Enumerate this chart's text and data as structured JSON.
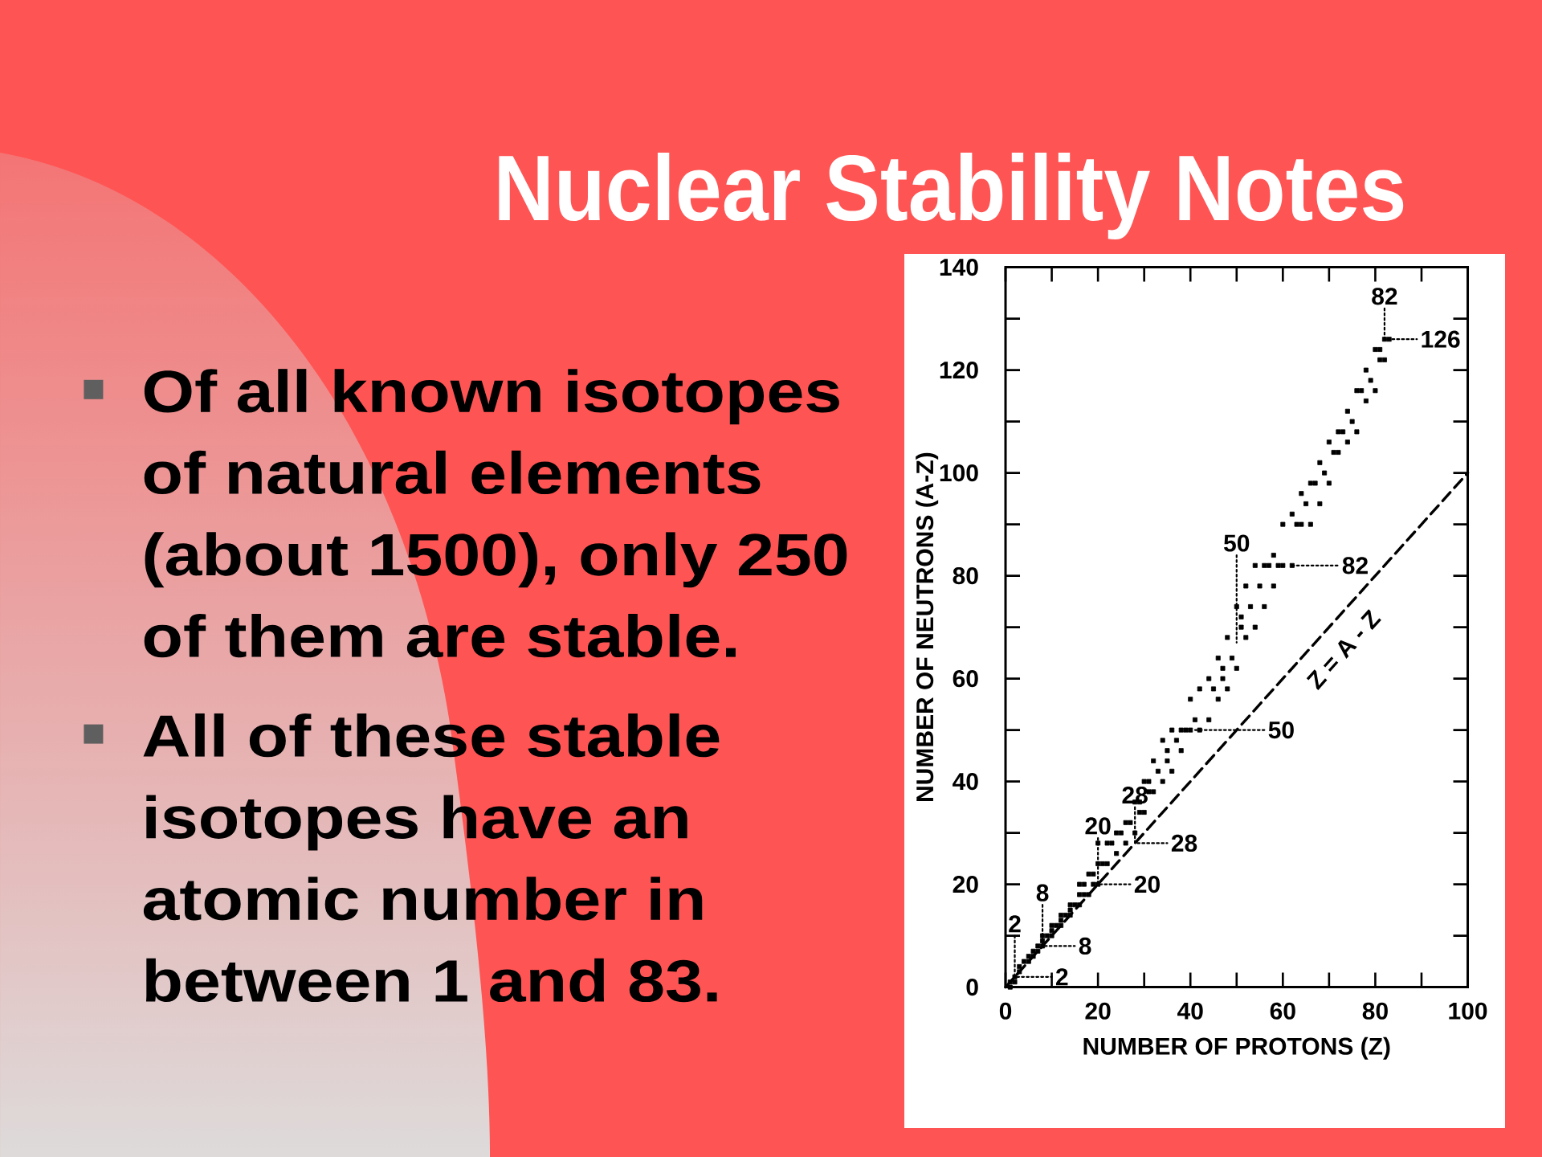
{
  "chart_data": {
    "type": "scatter",
    "title": "Nuclear Stability Notes",
    "xlabel": "NUMBER OF PROTONS (Z)",
    "ylabel": "NUMBER OF NEUTRONS (A-Z)",
    "xlim": [
      0,
      100
    ],
    "ylim": [
      0,
      140
    ],
    "xticks": [
      0,
      {
        "value": 10,
        "label": null
      },
      20,
      {
        "value": 30,
        "label": null
      },
      40,
      {
        "value": 50,
        "label": null
      },
      60,
      {
        "value": 70,
        "label": null
      },
      80,
      {
        "value": 90,
        "label": null
      },
      100
    ],
    "yticks": [
      0,
      {
        "value": 10,
        "label": null
      },
      20,
      {
        "value": 30,
        "label": null
      },
      40,
      {
        "value": 50,
        "label": null
      },
      60,
      {
        "value": 70,
        "label": null
      },
      80,
      {
        "value": 90,
        "label": null
      },
      100,
      {
        "value": 110,
        "label": null
      },
      120,
      {
        "value": 130,
        "label": null
      },
      140
    ],
    "series": [
      {
        "color": "#000000",
        "marker": "square",
        "x": [
          1,
          1,
          2,
          2,
          3,
          3,
          4,
          5,
          5,
          6,
          6,
          7,
          7,
          8,
          8,
          8,
          9,
          10,
          10,
          10,
          11,
          12,
          12,
          12,
          13,
          14,
          14,
          14,
          15,
          16,
          16,
          16,
          17,
          17,
          18,
          18,
          19,
          19,
          20,
          20,
          20,
          21,
          22,
          22,
          23,
          24,
          24,
          25,
          26,
          26,
          27,
          28,
          28,
          29,
          29,
          30,
          30,
          31,
          31,
          32,
          32,
          33,
          34,
          34,
          35,
          35,
          36,
          36,
          37,
          38,
          38,
          39,
          40,
          40,
          41,
          42,
          42,
          44,
          44,
          45,
          46,
          46,
          47,
          47,
          48,
          48,
          49,
          50,
          50,
          51,
          51,
          52,
          52,
          53,
          54,
          54,
          55,
          56,
          56,
          57,
          58,
          58,
          59,
          60,
          60,
          62,
          62,
          63,
          64,
          64,
          65,
          66,
          66,
          67,
          68,
          68,
          69,
          70,
          70,
          71,
          72,
          72,
          73,
          74,
          74,
          75,
          76,
          76,
          77,
          78,
          78,
          79,
          80,
          80,
          81,
          81,
          82,
          82,
          83
        ],
        "values": [
          0,
          1,
          1,
          2,
          3,
          4,
          5,
          5,
          6,
          6,
          7,
          7,
          8,
          8,
          9,
          10,
          10,
          10,
          11,
          12,
          12,
          12,
          13,
          14,
          14,
          14,
          15,
          16,
          16,
          16,
          18,
          20,
          18,
          20,
          18,
          22,
          20,
          22,
          20,
          24,
          28,
          24,
          24,
          28,
          28,
          26,
          30,
          30,
          28,
          32,
          32,
          30,
          36,
          34,
          36,
          34,
          40,
          38,
          40,
          38,
          44,
          42,
          40,
          48,
          44,
          46,
          42,
          50,
          48,
          46,
          50,
          50,
          50,
          56,
          52,
          50,
          58,
          52,
          60,
          58,
          56,
          64,
          60,
          62,
          58,
          68,
          64,
          62,
          74,
          70,
          72,
          68,
          78,
          74,
          70,
          82,
          78,
          74,
          82,
          82,
          78,
          84,
          82,
          82,
          90,
          82,
          92,
          90,
          90,
          96,
          94,
          90,
          98,
          98,
          94,
          102,
          100,
          98,
          106,
          104,
          104,
          108,
          108,
          106,
          112,
          110,
          108,
          116,
          116,
          114,
          120,
          118,
          116,
          124,
          122,
          124,
          122,
          126,
          126
        ]
      },
      {
        "type": "line",
        "name": "Z = A - Z",
        "color": "#000000",
        "line_style": "dashed",
        "x": [
          0,
          100
        ],
        "values": [
          0,
          100
        ]
      },
      {
        "type": "line",
        "color": "#000000",
        "line_style": "dotted",
        "x": [
          2,
          2,
          10
        ],
        "values": [
          10,
          2,
          2
        ]
      },
      {
        "type": "line",
        "color": "#000000",
        "line_style": "dotted",
        "x": [
          8,
          8,
          15
        ],
        "values": [
          16,
          8,
          8
        ]
      },
      {
        "type": "line",
        "color": "#000000",
        "line_style": "dotted",
        "x": [
          20,
          20,
          27
        ],
        "values": [
          29,
          20,
          20
        ]
      },
      {
        "type": "line",
        "color": "#000000",
        "line_style": "dotted",
        "x": [
          28,
          28,
          35
        ],
        "values": [
          35,
          28,
          28
        ]
      },
      {
        "type": "line",
        "color": "#000000",
        "line_style": "dotted",
        "x": [
          50,
          50
        ],
        "values": [
          84,
          67
        ]
      },
      {
        "type": "line",
        "color": "#000000",
        "line_style": "dotted",
        "x": [
          41,
          56
        ],
        "values": [
          50,
          50
        ]
      },
      {
        "type": "line",
        "color": "#000000",
        "line_style": "dotted",
        "x": [
          62,
          72
        ],
        "values": [
          82,
          82
        ]
      },
      {
        "type": "line",
        "color": "#000000",
        "line_style": "dotted",
        "x": [
          82,
          82,
          89
        ],
        "values": [
          132,
          126,
          126
        ]
      }
    ],
    "annotations": [
      "Of all known isotopes of natural elements (about 1500), only 250 of them are stable.",
      "All of these stable isotopes have an atomic number in between 1 and 83.",
      {
        "text": "2",
        "x": 2,
        "y": 10
      },
      {
        "text": "2",
        "x": 10,
        "y": 2
      },
      {
        "text": "8",
        "x": 8,
        "y": 16
      },
      {
        "text": "8",
        "x": 15,
        "y": 8
      },
      {
        "text": "20",
        "x": 20,
        "y": 29
      },
      {
        "text": "20",
        "x": 27,
        "y": 20
      },
      {
        "text": "28",
        "x": 28,
        "y": 35
      },
      {
        "text": "28",
        "x": 35,
        "y": 28
      },
      {
        "text": "50",
        "x": 50,
        "y": 84
      },
      {
        "text": "50",
        "x": 56,
        "y": 50
      },
      {
        "text": "82",
        "x": 72,
        "y": 82
      },
      {
        "text": "82",
        "x": 82,
        "y": 132
      },
      {
        "text": "126",
        "x": 89,
        "y": 126
      }
    ]
  }
}
